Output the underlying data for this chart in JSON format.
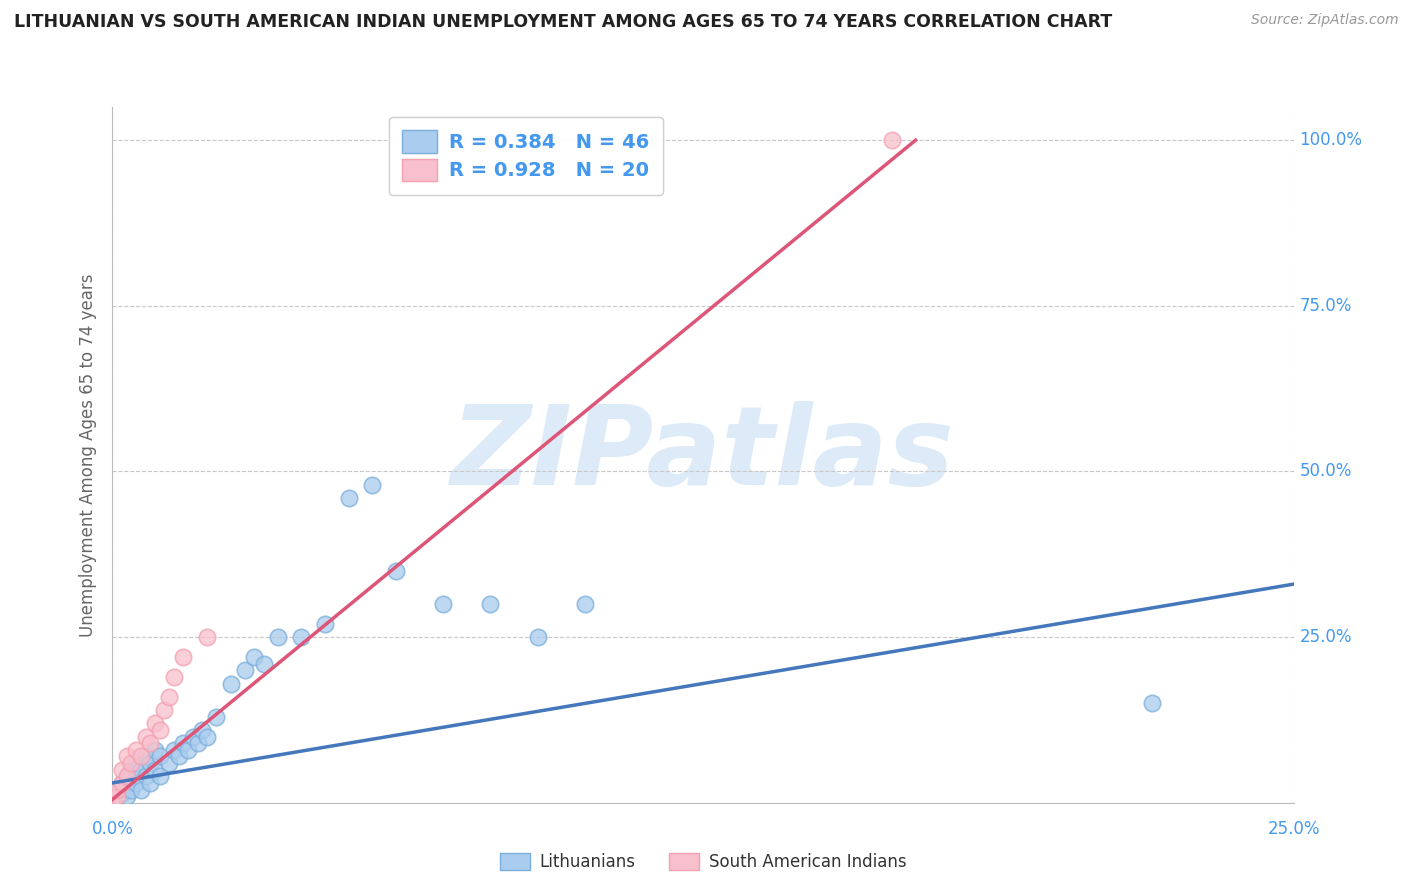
{
  "title": "LITHUANIAN VS SOUTH AMERICAN INDIAN UNEMPLOYMENT AMONG AGES 65 TO 74 YEARS CORRELATION CHART",
  "source": "Source: ZipAtlas.com",
  "ylabel": "Unemployment Among Ages 65 to 74 years",
  "xlim": [
    0.0,
    0.25
  ],
  "ylim": [
    0.0,
    1.05
  ],
  "ytick_positions": [
    0.0,
    0.25,
    0.5,
    0.75,
    1.0
  ],
  "ytick_labels": [
    "",
    "25.0%",
    "50.0%",
    "75.0%",
    "100.0%"
  ],
  "xtick_positions": [
    0.0,
    0.25
  ],
  "xtick_labels": [
    "0.0%",
    "25.0%"
  ],
  "background_color": "#ffffff",
  "grid_color": "#c8c8c8",
  "watermark_text": "ZIPatlas",
  "watermark_color": "#ddeaf8",
  "legend_R1": "R = 0.384",
  "legend_N1": "N = 46",
  "legend_R2": "R = 0.928",
  "legend_N2": "N = 20",
  "blue_color": "#7aaedc",
  "pink_color": "#f4a0b0",
  "blue_fill": "#aaccee",
  "pink_fill": "#f8c0cc",
  "blue_line_color": "#4477bb",
  "pink_line_color": "#dd5577",
  "label_color": "#4499ee",
  "title_color": "#222222",
  "blue_scatter_x": [
    0.0,
    0.001,
    0.001,
    0.002,
    0.002,
    0.003,
    0.003,
    0.004,
    0.004,
    0.005,
    0.005,
    0.006,
    0.006,
    0.007,
    0.007,
    0.008,
    0.008,
    0.009,
    0.009,
    0.01,
    0.01,
    0.012,
    0.013,
    0.014,
    0.015,
    0.016,
    0.017,
    0.018,
    0.019,
    0.02,
    0.022,
    0.025,
    0.028,
    0.03,
    0.032,
    0.035,
    0.04,
    0.045,
    0.05,
    0.055,
    0.06,
    0.07,
    0.08,
    0.09,
    0.1,
    0.22
  ],
  "blue_scatter_y": [
    0.005,
    0.01,
    0.02,
    0.015,
    0.03,
    0.01,
    0.04,
    0.02,
    0.05,
    0.03,
    0.06,
    0.02,
    0.05,
    0.04,
    0.07,
    0.03,
    0.06,
    0.05,
    0.08,
    0.04,
    0.07,
    0.06,
    0.08,
    0.07,
    0.09,
    0.08,
    0.1,
    0.09,
    0.11,
    0.1,
    0.13,
    0.18,
    0.2,
    0.22,
    0.21,
    0.25,
    0.25,
    0.27,
    0.46,
    0.48,
    0.35,
    0.3,
    0.3,
    0.25,
    0.3,
    0.15
  ],
  "pink_scatter_x": [
    0.0,
    0.001,
    0.001,
    0.002,
    0.002,
    0.003,
    0.003,
    0.004,
    0.005,
    0.006,
    0.007,
    0.008,
    0.009,
    0.01,
    0.011,
    0.012,
    0.013,
    0.015,
    0.02,
    0.165
  ],
  "pink_scatter_y": [
    0.005,
    0.01,
    0.02,
    0.03,
    0.05,
    0.04,
    0.07,
    0.06,
    0.08,
    0.07,
    0.1,
    0.09,
    0.12,
    0.11,
    0.14,
    0.16,
    0.19,
    0.22,
    0.25,
    1.0
  ],
  "blue_line_x": [
    0.0,
    0.25
  ],
  "blue_line_y": [
    0.03,
    0.33
  ],
  "pink_line_x": [
    0.0,
    0.17
  ],
  "pink_line_y": [
    0.005,
    1.0
  ]
}
